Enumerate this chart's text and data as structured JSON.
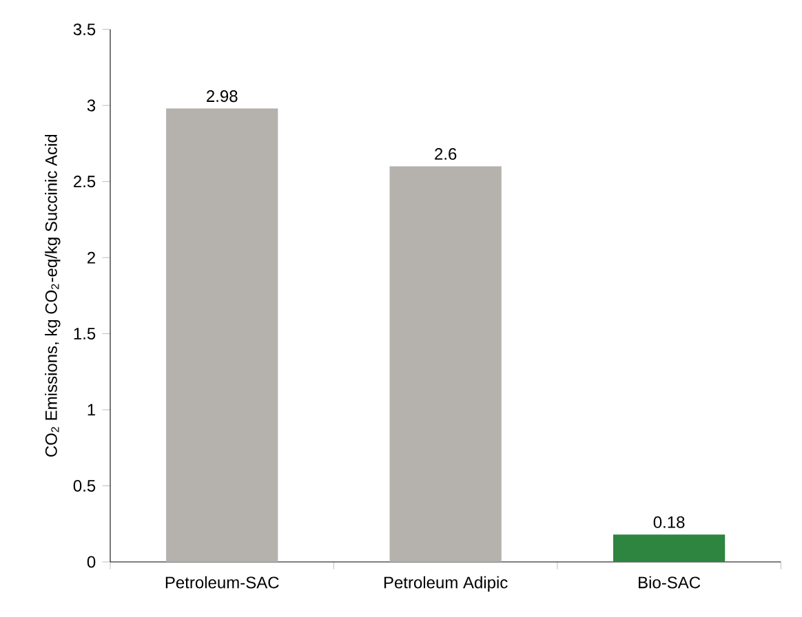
{
  "chart_data": {
    "type": "bar",
    "ylabel": "CO$_{2}$ Emissions, kg CO$_{2}$-eq/kg Succinic Acid",
    "categories": [
      "Petroleum-SAC",
      "Petroleum Adipic",
      "Bio-SAC"
    ],
    "values": [
      2.98,
      2.6,
      0.18
    ],
    "colors": [
      "#b5b1ad",
      "#b5b1ad",
      "#2e8540"
    ],
    "ylim": [
      0,
      3.5
    ],
    "yticks": [
      0,
      0.5,
      1,
      1.5,
      2,
      2.5,
      3,
      3.5
    ],
    "data_labels": true,
    "grid": false
  }
}
